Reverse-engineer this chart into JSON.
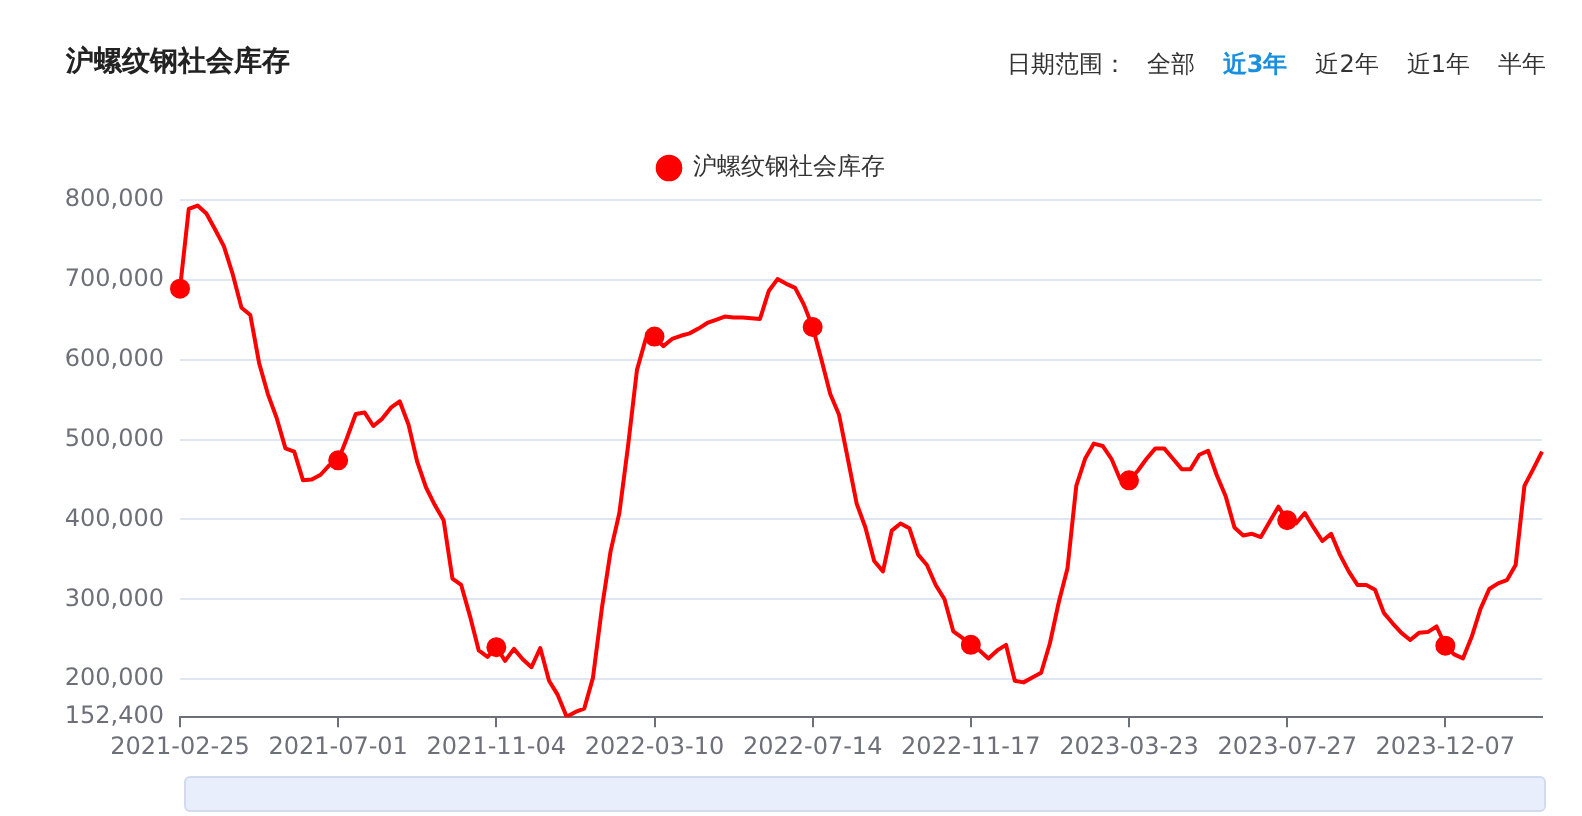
{
  "chart_data": {
    "type": "line",
    "title": "沪螺纹钢社会库存",
    "annotations": [
      "日期范围：",
      "全部",
      "近3年",
      "近2年",
      "近1年",
      "半年"
    ],
    "categories": [
      "2021-02-25",
      null,
      null,
      null,
      null,
      null,
      null,
      null,
      null,
      null,
      null,
      null,
      null,
      null,
      null,
      null,
      null,
      null,
      "2021-07-01",
      null,
      null,
      null,
      null,
      null,
      null,
      null,
      null,
      null,
      null,
      null,
      null,
      null,
      null,
      null,
      null,
      null,
      "2021-11-04",
      null,
      null,
      null,
      null,
      null,
      null,
      null,
      null,
      null,
      null,
      null,
      null,
      null,
      null,
      null,
      null,
      null,
      "2022-03-10",
      null,
      null,
      null,
      null,
      null,
      null,
      null,
      null,
      null,
      null,
      null,
      null,
      null,
      null,
      null,
      null,
      null,
      "2022-07-14",
      null,
      null,
      null,
      null,
      null,
      null,
      null,
      null,
      null,
      null,
      null,
      null,
      null,
      null,
      null,
      null,
      null,
      "2022-11-17",
      null,
      null,
      null,
      null,
      null,
      null,
      null,
      null,
      null,
      null,
      null,
      null,
      null,
      null,
      null,
      null,
      null,
      "2023-03-23",
      null,
      null,
      null,
      null,
      null,
      null,
      null,
      null,
      null,
      null,
      null,
      null,
      null,
      null,
      null,
      null,
      null,
      "2023-07-27",
      null,
      null,
      null,
      null,
      null,
      null,
      null,
      null,
      null,
      null,
      null,
      null,
      null,
      null,
      null,
      null,
      null,
      "2023-12-07",
      null,
      null,
      null,
      null,
      null,
      null,
      null,
      null,
      null,
      null,
      null
    ],
    "series": [
      {
        "name": "沪螺纹钢社会库存",
        "color": "#ff0000",
        "values": [
          689000,
          789000,
          793000,
          783000,
          763000,
          742000,
          707000,
          665000,
          656000,
          596000,
          557000,
          527000,
          489000,
          485000,
          449000,
          450000,
          456000,
          468000,
          474000,
          502000,
          532000,
          534000,
          517000,
          526000,
          540000,
          548000,
          519000,
          472000,
          440000,
          418000,
          399000,
          326000,
          318000,
          279000,
          236000,
          228000,
          240000,
          223000,
          238000,
          225000,
          215000,
          239000,
          198000,
          180000,
          153000,
          159000,
          163000,
          202000,
          288000,
          360000,
          408000,
          493000,
          587000,
          626000,
          629000,
          617000,
          626000,
          630000,
          633000,
          639000,
          646000,
          650000,
          654000,
          653000,
          653000,
          652000,
          651000,
          686000,
          701000,
          695000,
          690000,
          669000,
          641000,
          600000,
          557000,
          531000,
          476000,
          420000,
          390000,
          348000,
          335000,
          386000,
          395000,
          389000,
          356000,
          343000,
          318000,
          300000,
          260000,
          252000,
          243000,
          236000,
          226000,
          236000,
          243000,
          198000,
          196000,
          202000,
          208000,
          245000,
          296000,
          339000,
          442000,
          476000,
          495000,
          492000,
          476000,
          450000,
          449000,
          461000,
          476000,
          489000,
          489000,
          476000,
          463000,
          463000,
          481000,
          486000,
          455000,
          429000,
          390000,
          380000,
          382000,
          378000,
          397000,
          416000,
          399000,
          395000,
          408000,
          390000,
          373000,
          382000,
          356000,
          335000,
          318000,
          318000,
          312000,
          283000,
          270000,
          258000,
          249000,
          258000,
          259000,
          266000,
          242000,
          231000,
          226000,
          253000,
          288000,
          313000,
          320000,
          324000,
          343000,
          442000,
          463000,
          485000
        ]
      }
    ],
    "ylim": [
      152400,
      800000
    ],
    "yticks": [
      {
        "value": 152400,
        "label": "152,400"
      },
      {
        "value": 200000,
        "label": "200,000"
      },
      {
        "value": 300000,
        "label": "300,000"
      },
      {
        "value": 400000,
        "label": "400,000"
      },
      {
        "value": 500000,
        "label": "500,000"
      },
      {
        "value": 600000,
        "label": "600,000"
      },
      {
        "value": 700000,
        "label": "700,000"
      },
      {
        "value": 800000,
        "label": "800,000"
      }
    ],
    "grid": "y",
    "legend": "top",
    "line_style": "solid"
  }
}
